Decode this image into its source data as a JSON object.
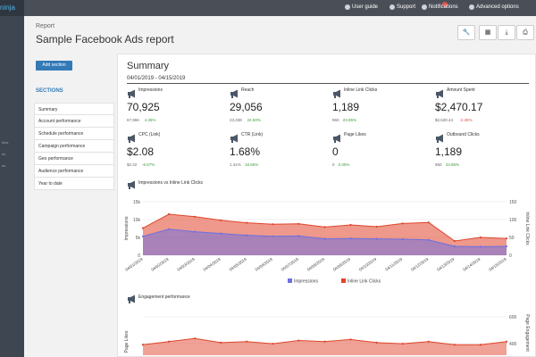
{
  "app": {
    "logo_text": "ninja"
  },
  "leftnav": {
    "items": [
      "trics",
      "es",
      "es"
    ]
  },
  "topbar": {
    "links": [
      {
        "label": "User guide",
        "icon": "book-icon"
      },
      {
        "label": "Support",
        "icon": "lifebuoy-icon"
      },
      {
        "label": "Notifications",
        "icon": "bell-icon"
      },
      {
        "label": "Advanced options",
        "icon": "gear-icon"
      }
    ]
  },
  "header": {
    "breadcrumb": "Report",
    "title": "Sample Facebook Ads report"
  },
  "toolbar": {
    "buttons": [
      "wrench-icon",
      "calendar-icon",
      "download-icon",
      "printer-icon",
      "more-icon"
    ]
  },
  "sidebar": {
    "add_label": "Add section",
    "heading": "SECTIONS",
    "items": [
      "Summary",
      "Account performance",
      "Schedule performance",
      "Campaign performance",
      "Geo performance",
      "Audience performance",
      "Year to date"
    ]
  },
  "summary": {
    "title": "Summary",
    "date_range": "04/01/2019 - 04/15/2019",
    "kpis": [
      {
        "label": "Impressions",
        "value": "70,925",
        "previous": "67,966",
        "change": "4.35%",
        "trend": "up"
      },
      {
        "label": "Reach",
        "value": "29,056",
        "previous": "23,338",
        "change": "24.50%",
        "trend": "up"
      },
      {
        "label": "Inline Link Clicks",
        "value": "1,189",
        "previous": "960",
        "change": "23.85%",
        "trend": "up"
      },
      {
        "label": "Amount Spent",
        "value": "$2,470.17",
        "previous": "$2,530.44",
        "change": "-2.38%",
        "trend": "down"
      },
      {
        "label": "CPC (Link)",
        "value": "$2.08",
        "previous": "$2.22",
        "change": "-6.57%",
        "trend": "up"
      },
      {
        "label": "CTR (Link)",
        "value": "1.68%",
        "previous": "1.41%",
        "change": "18.65%",
        "trend": "up"
      },
      {
        "label": "Page Likes",
        "value": "0",
        "previous": "0",
        "change": "0.00%",
        "trend": "neutral"
      },
      {
        "label": "Outbound Clicks",
        "value": "1,189",
        "previous": "960",
        "change": "23.85%",
        "trend": "up"
      }
    ]
  },
  "chart_data": [
    {
      "type": "area",
      "title": "Impressions vs Inline Link Clicks",
      "ylabel": "Impressions",
      "y2label": "Inline Link Clicks",
      "x": [
        "04/01/2019",
        "04/02/2019",
        "04/03/2019",
        "04/04/2019",
        "04/05/2019",
        "04/06/2019",
        "04/07/2019",
        "04/08/2019",
        "04/09/2019",
        "04/10/2019",
        "04/11/2019",
        "04/12/2019",
        "04/13/2019",
        "04/14/2019",
        "04/15/2019"
      ],
      "ylim": [
        0,
        15000
      ],
      "y2lim": [
        0,
        150
      ],
      "yticks": [
        "0",
        "5k",
        "10k",
        "15k"
      ],
      "y2ticks": [
        "0",
        "50",
        "100",
        "150"
      ],
      "series": [
        {
          "name": "Impressions",
          "axis": "left",
          "color": "#6f6fe0",
          "values": [
            5300,
            7300,
            6600,
            6100,
            5600,
            5300,
            5400,
            4600,
            4700,
            4600,
            4500,
            4300,
            2500,
            2400,
            2500
          ]
        },
        {
          "name": "Inline Link Clicks",
          "axis": "right",
          "color": "#e0452c",
          "values": [
            76,
            115,
            108,
            98,
            91,
            87,
            88,
            79,
            85,
            80,
            89,
            92,
            40,
            50,
            47
          ]
        }
      ],
      "legend": "bottom",
      "grid": true
    },
    {
      "type": "line",
      "title": "Engagement performance",
      "ylabel": "Page Likes",
      "y2label": "Page Engagement",
      "y2ticks": [
        "400",
        "600"
      ],
      "series": [
        {
          "name": "Page Likes",
          "color": "#6f6fe0"
        },
        {
          "name": "Page Engagement",
          "color": "#e0452c",
          "values": [
            400,
            430,
            460,
            420,
            430,
            410,
            440,
            430,
            450,
            420,
            410,
            430,
            400,
            400,
            430
          ]
        }
      ]
    }
  ],
  "colors": {
    "accent": "#337ab7",
    "topbar": "#4a4f57",
    "leftbar": "#3e4651",
    "positive": "#3c9a3c",
    "negative": "#d9534f"
  }
}
